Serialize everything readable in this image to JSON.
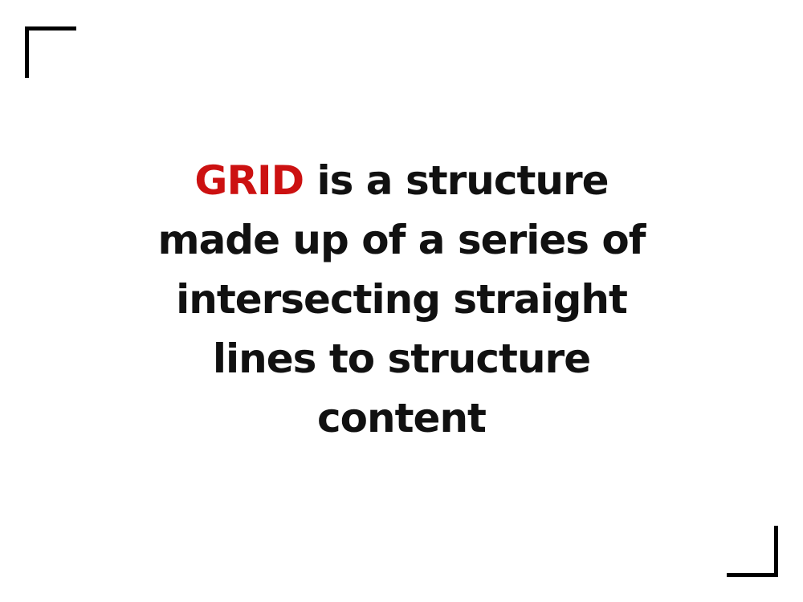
{
  "slide": {
    "highlight_word": "GRID",
    "line_1_rest": " is a structure",
    "line_2": "made up of a series of",
    "line_3": "intersecting straight",
    "line_4": "lines to structure",
    "line_5": "content"
  },
  "colors": {
    "highlight": "#cc1111",
    "text": "#111111",
    "corner_marks": "#000000",
    "background": "#ffffff"
  }
}
